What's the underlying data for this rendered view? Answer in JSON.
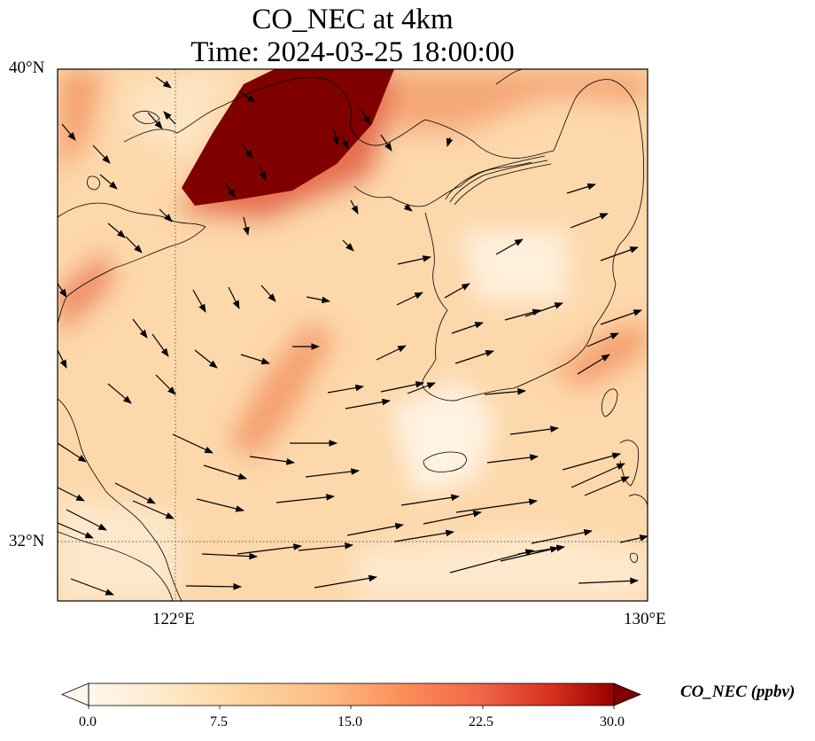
{
  "title": {
    "line1": "CO_NEC at 4km",
    "line2": "Time: 2024-03-25 18:00:00"
  },
  "map": {
    "lat_range": [
      31.2,
      40.0
    ],
    "lon_range": [
      120.0,
      130.0
    ],
    "lat_ticks": [
      "40°N",
      "32°N"
    ],
    "lon_ticks": [
      "122°E",
      "130°E"
    ],
    "gridlines": "dotted"
  },
  "colorbar": {
    "label": "CO_NEC (ppbv)",
    "ticks": [
      "0.0",
      "7.5",
      "15.0",
      "22.5",
      "30.0"
    ],
    "min": 0.0,
    "max": 30.0,
    "colormap": "OrRd",
    "extend": "both"
  },
  "colors": {
    "low": "#fff7ec",
    "mid": "#fdd49e",
    "high": "#ef6548",
    "max": "#7f0000"
  }
}
